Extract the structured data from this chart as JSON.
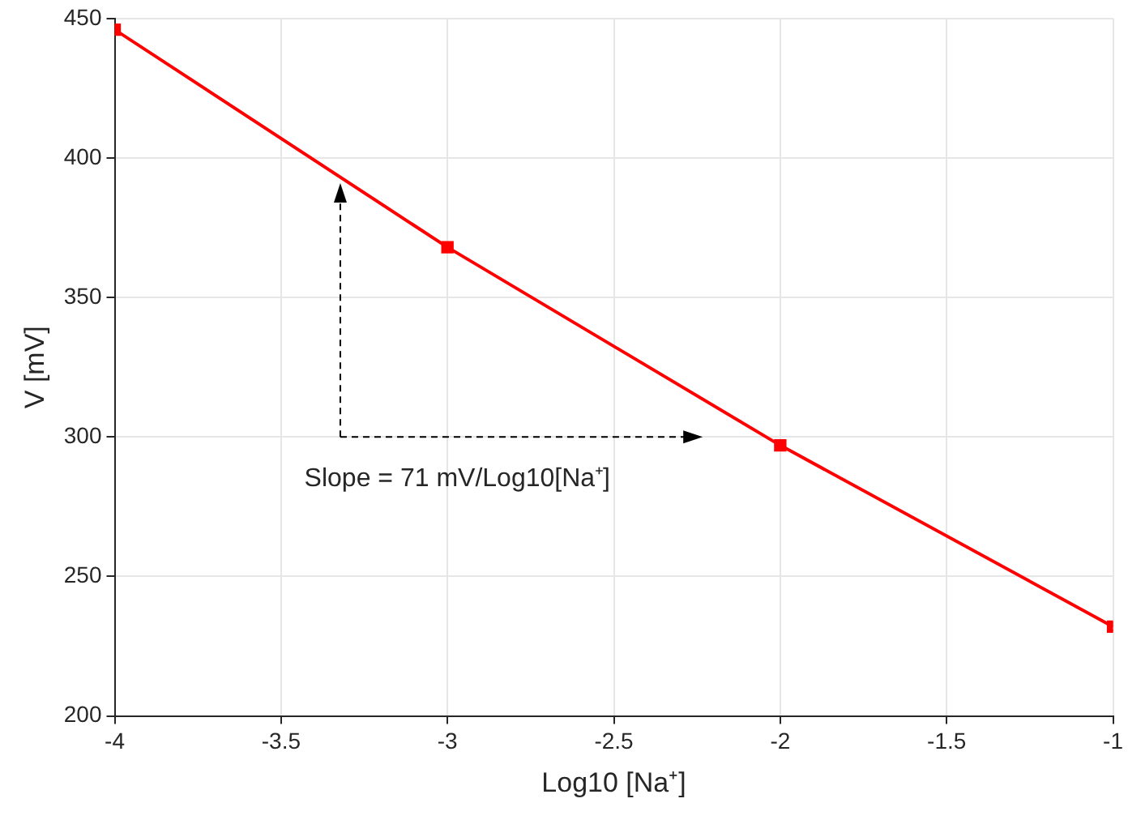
{
  "chart_data": {
    "type": "line",
    "xlabel": "Log10 [Na⁺]",
    "ylabel": "V [mV]",
    "x": [
      -4,
      -3,
      -2,
      -1
    ],
    "series": [
      {
        "color": "#ff0000",
        "values": [
          446,
          368,
          297,
          232
        ]
      }
    ],
    "xlim": [
      -4,
      -1
    ],
    "xticks": [
      -4,
      -3.5,
      -3,
      -2.5,
      -2,
      -1.5,
      -1
    ],
    "ylim": [
      200,
      450
    ],
    "yticks": [
      200,
      250,
      300,
      350,
      400,
      450
    ],
    "grid": true,
    "marker": "square",
    "line_style": "solid",
    "annotations": [
      "Slope = 71 mV/Log10[Na⁺]"
    ]
  }
}
